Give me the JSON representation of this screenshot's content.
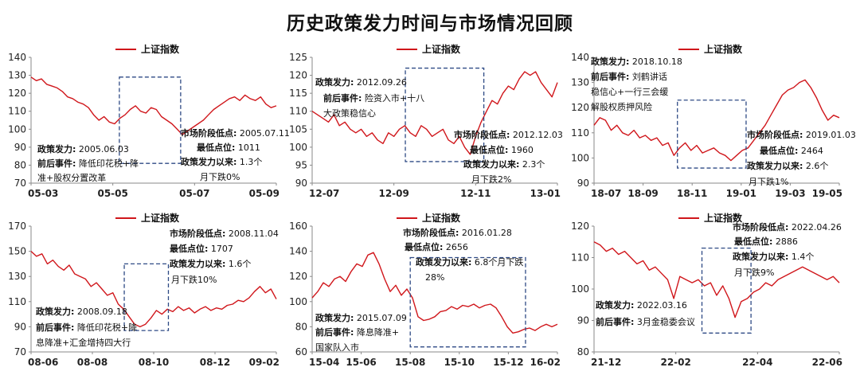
{
  "page_title": "历史政策发力时间与市场情况回顾",
  "chart_data": [
    {
      "type": "line",
      "legend": "上证指数",
      "legend_color": "#d0161b",
      "ylim": [
        70,
        140
      ],
      "yticks": [
        70,
        80,
        90,
        100,
        110,
        120,
        130,
        140
      ],
      "xticks": [
        "05-03",
        "05-05",
        "05-07",
        "05-09"
      ],
      "series": [
        {
          "values": [
            129,
            127,
            128,
            125,
            124,
            123,
            121,
            118,
            117,
            115,
            114,
            112,
            108,
            105,
            107,
            104,
            103,
            106,
            108,
            111,
            113,
            110,
            109,
            112,
            111,
            107,
            105,
            103,
            100,
            97,
            99,
            101,
            103,
            105,
            108,
            111,
            113,
            115,
            117,
            118,
            116,
            119,
            117,
            116,
            118,
            114,
            112,
            113
          ]
        }
      ],
      "policy_box": {
        "x": [
          0.36,
          0.61
        ],
        "y": [
          81,
          129
        ]
      },
      "annotations": {
        "policy": {
          "label": "政策发力:",
          "value": "2005.06.03"
        },
        "event": {
          "label": "前后事件:",
          "value": "降低印花税+降",
          "more": "准+股权分置改革"
        },
        "low": {
          "label": "市场阶段低点:",
          "value": "2005.07.11"
        },
        "low_point": {
          "label": "最低点位:",
          "value": "1011"
        },
        "since": {
          "label": "政策发力以来:",
          "value": "1.3个",
          "more": "月下跌0%"
        }
      }
    },
    {
      "type": "line",
      "legend": "上证指数",
      "legend_color": "#d0161b",
      "ylim": [
        90,
        125
      ],
      "yticks": [
        90,
        95,
        100,
        105,
        110,
        115,
        120,
        125
      ],
      "xticks": [
        "12-07",
        "12-09",
        "12-11",
        "13-01"
      ],
      "series": [
        {
          "values": [
            110,
            109,
            108,
            107,
            109,
            106,
            107,
            105,
            104,
            105,
            103,
            104,
            102,
            101,
            104,
            103,
            105,
            106,
            104,
            103,
            106,
            105,
            103,
            104,
            105,
            102,
            101,
            103,
            100,
            98,
            103,
            107,
            110,
            113,
            112,
            115,
            117,
            116,
            119,
            121,
            120,
            121,
            118,
            116,
            114,
            118
          ]
        }
      ],
      "policy_box": {
        "x": [
          0.38,
          0.7
        ],
        "y": [
          96,
          122
        ]
      },
      "annotations": {
        "policy": {
          "label": "政策发力:",
          "value": "2012.09.26"
        },
        "event": {
          "label": "前后事件:",
          "value": "险资入市+十八",
          "more": "大政策稳信心"
        },
        "low": {
          "label": "市场阶段低点:",
          "value": "2012.12.03"
        },
        "low_point": {
          "label": "最低点位:",
          "value": "1960"
        },
        "since": {
          "label": "政策发力以来:",
          "value": "2.3个",
          "more": "月下跌2%"
        }
      }
    },
    {
      "type": "line",
      "legend": "上证指数",
      "legend_color": "#d0161b",
      "ylim": [
        90,
        140
      ],
      "yticks": [
        90,
        100,
        110,
        120,
        130,
        140
      ],
      "xticks": [
        "18-07",
        "18-09",
        "18-11",
        "19-01",
        "19-03",
        "19-05"
      ],
      "series": [
        {
          "values": [
            113,
            116,
            115,
            111,
            113,
            110,
            109,
            111,
            108,
            109,
            107,
            108,
            105,
            106,
            101,
            104,
            106,
            103,
            105,
            102,
            103,
            104,
            102,
            101,
            99,
            101,
            103,
            104,
            107,
            110,
            113,
            117,
            121,
            125,
            127,
            128,
            130,
            131,
            128,
            124,
            119,
            115,
            117,
            116
          ]
        }
      ],
      "policy_box": {
        "x": [
          0.34,
          0.62
        ],
        "y": [
          96,
          123
        ]
      },
      "annotations": {
        "policy": {
          "label": "政策发力:",
          "value": "2018.10.18"
        },
        "event": {
          "label": "前后事件:",
          "value": "刘鹤讲话",
          "more": "稳信心+一行三会缓",
          "more2": "解股权质押风险"
        },
        "low": {
          "label": "市场阶段低点:",
          "value": "2019.01.03"
        },
        "low_point": {
          "label": "最低点位:",
          "value": "2464"
        },
        "since": {
          "label": "政策发力以来:",
          "value": "2.6个",
          "more": "月下跌1%"
        }
      }
    },
    {
      "type": "line",
      "legend": "上证指数",
      "legend_color": "#d0161b",
      "ylim": [
        70,
        170
      ],
      "yticks": [
        70,
        90,
        110,
        130,
        150,
        170
      ],
      "xticks": [
        "08-06",
        "08-08",
        "08-10",
        "08-12",
        "09-02"
      ],
      "series": [
        {
          "values": [
            150,
            146,
            148,
            140,
            143,
            138,
            135,
            139,
            132,
            130,
            128,
            122,
            125,
            120,
            115,
            117,
            108,
            104,
            98,
            92,
            90,
            92,
            97,
            103,
            100,
            104,
            102,
            106,
            103,
            105,
            101,
            104,
            106,
            103,
            105,
            104,
            107,
            108,
            111,
            110,
            113,
            118,
            122,
            117,
            120,
            112
          ]
        }
      ],
      "policy_box": {
        "x": [
          0.38,
          0.56
        ],
        "y": [
          87,
          140
        ]
      },
      "annotations": {
        "policy": {
          "label": "政策发力:",
          "value": "2008.09.18"
        },
        "event": {
          "label": "前后事件:",
          "value": "降低印花税+降",
          "more": "息降准+汇金增持四大行"
        },
        "low": {
          "label": "市场阶段低点:",
          "value": "2008.11.04"
        },
        "low_point": {
          "label": "最低点位:",
          "value": "1707"
        },
        "since": {
          "label": "政策发力以来:",
          "value": "1.6个",
          "more": "月下跌10%"
        }
      }
    },
    {
      "type": "line",
      "legend": "上证指数",
      "legend_color": "#d0161b",
      "ylim": [
        60,
        160
      ],
      "yticks": [
        60,
        80,
        100,
        120,
        140,
        160
      ],
      "xticks": [
        "15-04",
        "15-06",
        "15-08",
        "15-10",
        "15-12",
        "16-02"
      ],
      "series": [
        {
          "values": [
            103,
            108,
            115,
            112,
            118,
            120,
            116,
            124,
            130,
            128,
            137,
            139,
            130,
            118,
            108,
            113,
            105,
            110,
            103,
            88,
            85,
            86,
            88,
            92,
            93,
            96,
            94,
            97,
            96,
            98,
            95,
            97,
            98,
            95,
            88,
            80,
            75,
            76,
            78,
            79,
            77,
            80,
            82,
            80,
            82
          ]
        }
      ],
      "policy_box": {
        "x": [
          0.4,
          0.87
        ],
        "y": [
          64,
          135
        ]
      },
      "annotations": {
        "policy": {
          "label": "政策发力:",
          "value": "2015.07.09"
        },
        "event": {
          "label": "前后事件:",
          "value": "降息降准+",
          "more": "国家队入市"
        },
        "low": {
          "label": "市场阶段低点:",
          "value": "2016.01.28"
        },
        "low_point": {
          "label": "最低点位:",
          "value": "2656"
        },
        "since": {
          "label": "政策发力以来:",
          "value": "6.8个月下跌",
          "more": "28%"
        }
      }
    },
    {
      "type": "line",
      "legend": "上证指数",
      "legend_color": "#d0161b",
      "ylim": [
        80,
        120
      ],
      "yticks": [
        80,
        90,
        100,
        110,
        120
      ],
      "xticks": [
        "21-12",
        "22-02",
        "22-04",
        "22-06"
      ],
      "series": [
        {
          "values": [
            115,
            114,
            112,
            113,
            111,
            112,
            110,
            108,
            109,
            106,
            107,
            105,
            103,
            97,
            104,
            103,
            102,
            103,
            101,
            102,
            98,
            101,
            97,
            91,
            96,
            97,
            99,
            100,
            102,
            101,
            103,
            104,
            105,
            106,
            107,
            106,
            105,
            104,
            103,
            104,
            102
          ]
        }
      ],
      "policy_box": {
        "x": [
          0.44,
          0.64
        ],
        "y": [
          86,
          113
        ]
      },
      "annotations": {
        "policy": {
          "label": "政策发力:",
          "value": "2022.03.16"
        },
        "event": {
          "label": "前后事件:",
          "value": "3月金稳委会议"
        },
        "low": {
          "label": "市场阶段低点:",
          "value": "2022.04.26"
        },
        "low_point": {
          "label": "最低点位:",
          "value": "2886"
        },
        "since": {
          "label": "政策发力以来:",
          "value": "1.4个",
          "more": "月下跌9%"
        }
      }
    }
  ]
}
